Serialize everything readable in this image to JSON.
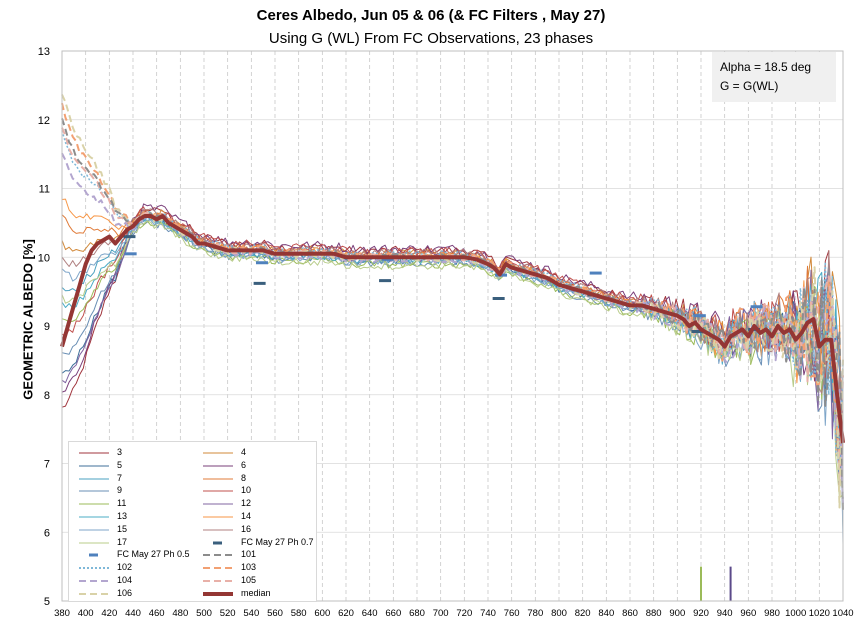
{
  "chart_data": {
    "type": "line",
    "title": "Ceres Albedo, Jun 05 & 06 (& FC Filters , May 27)",
    "subtitle": "Using G (WL) From FC Observations, 23 phases",
    "ylabel": "GEOMETRIC ALBEDO [%]",
    "xlim": [
      380,
      1040
    ],
    "ylim": [
      5,
      13
    ],
    "x_ticks": [
      380,
      400,
      420,
      440,
      460,
      480,
      500,
      520,
      540,
      560,
      580,
      600,
      620,
      640,
      660,
      680,
      700,
      720,
      740,
      760,
      780,
      800,
      820,
      840,
      860,
      880,
      900,
      920,
      940,
      960,
      980,
      1000,
      1020,
      1040
    ],
    "y_ticks": [
      5,
      6,
      7,
      8,
      9,
      10,
      11,
      12,
      13
    ],
    "grid": {
      "vertical": "dashed",
      "horizontal": "solid"
    },
    "legend_position": "bottom-left",
    "annotation": {
      "line1": "Alpha = 18.5  deg",
      "line2": "G = G(WL)"
    },
    "series": [
      {
        "name": "3",
        "color": "#a0343c",
        "style": "solid",
        "width": 1,
        "offset": 0.1,
        "lowstart": 7.8,
        "noise": 0.06
      },
      {
        "name": "4",
        "color": "#d2893a",
        "style": "solid",
        "width": 1,
        "offset": 0.05,
        "lowstart": 10.2,
        "noise": 0.06
      },
      {
        "name": "5",
        "color": "#3f6f9a",
        "style": "solid",
        "width": 1,
        "offset": -0.05,
        "lowstart": 8.3,
        "noise": 0.06
      },
      {
        "name": "6",
        "color": "#7a3f7a",
        "style": "solid",
        "width": 1,
        "offset": 0.12,
        "lowstart": 8.0,
        "noise": 0.07
      },
      {
        "name": "7",
        "color": "#4aa0c0",
        "style": "solid",
        "width": 1,
        "offset": -0.02,
        "lowstart": 9.6,
        "noise": 0.06
      },
      {
        "name": "8",
        "color": "#e07b39",
        "style": "solid",
        "width": 1,
        "offset": 0.03,
        "lowstart": 10.6,
        "noise": 0.06
      },
      {
        "name": "9",
        "color": "#6a8fb5",
        "style": "solid",
        "width": 1,
        "offset": -0.08,
        "lowstart": 8.6,
        "noise": 0.06
      },
      {
        "name": "10",
        "color": "#c0504d",
        "style": "solid",
        "width": 1,
        "offset": 0.08,
        "lowstart": 8.9,
        "noise": 0.07
      },
      {
        "name": "11",
        "color": "#9bbb59",
        "style": "solid",
        "width": 1,
        "offset": -0.1,
        "lowstart": 9.1,
        "noise": 0.06
      },
      {
        "name": "12",
        "color": "#8064a2",
        "style": "solid",
        "width": 1,
        "offset": 0.0,
        "lowstart": 8.2,
        "noise": 0.06
      },
      {
        "name": "13",
        "color": "#4bacc6",
        "style": "solid",
        "width": 1,
        "offset": -0.04,
        "lowstart": 9.3,
        "noise": 0.06
      },
      {
        "name": "14",
        "color": "#f79646",
        "style": "solid",
        "width": 1,
        "offset": 0.02,
        "lowstart": 10.9,
        "noise": 0.06
      },
      {
        "name": "15",
        "color": "#7fa6c9",
        "style": "solid",
        "width": 1,
        "offset": -0.06,
        "lowstart": 9.8,
        "noise": 0.06
      },
      {
        "name": "16",
        "color": "#b08080",
        "style": "solid",
        "width": 1,
        "offset": 0.06,
        "lowstart": 10.0,
        "noise": 0.06
      },
      {
        "name": "17",
        "color": "#b8cc8a",
        "style": "solid",
        "width": 1,
        "offset": -0.12,
        "lowstart": 9.4,
        "noise": 0.06
      },
      {
        "name": "102",
        "color": "#7fb8d8",
        "style": "dotted",
        "width": 1.5,
        "offset": 0.04,
        "lowstart": 11.8,
        "noise": 0.05
      },
      {
        "name": "103",
        "color": "#f2a072",
        "style": "dashed",
        "width": 2,
        "offset": 0.02,
        "lowstart": 12.2,
        "noise": 0.05
      },
      {
        "name": "104",
        "color": "#b3a6cf",
        "style": "dashed",
        "width": 2,
        "offset": -0.03,
        "lowstart": 11.5,
        "noise": 0.05
      },
      {
        "name": "105",
        "color": "#e8b0a8",
        "style": "dashed",
        "width": 2,
        "offset": 0.0,
        "lowstart": 11.9,
        "noise": 0.05
      },
      {
        "name": "106",
        "color": "#d9d2a8",
        "style": "dashed",
        "width": 2,
        "offset": -0.01,
        "lowstart": 12.4,
        "noise": 0.05
      },
      {
        "name": "101",
        "color": "#8c8c8c",
        "style": "dashed",
        "width": 2,
        "offset": 0.01,
        "lowstart": 12.0,
        "noise": 0.04
      }
    ],
    "median": {
      "name": "median",
      "color": "#943634",
      "x": [
        380,
        385,
        390,
        395,
        400,
        405,
        410,
        415,
        420,
        425,
        430,
        435,
        440,
        445,
        450,
        455,
        460,
        465,
        470,
        475,
        480,
        485,
        490,
        495,
        500,
        510,
        520,
        530,
        540,
        550,
        560,
        570,
        580,
        590,
        600,
        610,
        620,
        630,
        640,
        650,
        660,
        670,
        680,
        690,
        700,
        710,
        720,
        730,
        740,
        745,
        750,
        755,
        760,
        770,
        780,
        790,
        800,
        810,
        820,
        830,
        840,
        850,
        860,
        870,
        880,
        890,
        900,
        905,
        910,
        915,
        920,
        925,
        930,
        935,
        940,
        945,
        950,
        955,
        960,
        965,
        970,
        975,
        980,
        985,
        990,
        995,
        1000,
        1005,
        1010,
        1015,
        1020,
        1025,
        1030,
        1035,
        1040
      ],
      "y": [
        8.7,
        9.0,
        9.3,
        9.6,
        9.9,
        10.1,
        10.2,
        10.25,
        10.3,
        10.2,
        10.3,
        10.4,
        10.45,
        10.55,
        10.6,
        10.6,
        10.55,
        10.6,
        10.5,
        10.45,
        10.4,
        10.35,
        10.3,
        10.2,
        10.2,
        10.15,
        10.1,
        10.1,
        10.1,
        10.1,
        10.05,
        10.05,
        10.05,
        10.05,
        10.05,
        10.05,
        10.0,
        10.0,
        10.0,
        10.0,
        10.0,
        10.0,
        10.0,
        10.0,
        10.0,
        10.0,
        10.0,
        9.97,
        9.9,
        9.85,
        9.75,
        9.9,
        9.85,
        9.8,
        9.75,
        9.7,
        9.6,
        9.55,
        9.5,
        9.45,
        9.4,
        9.35,
        9.3,
        9.3,
        9.25,
        9.2,
        9.15,
        9.1,
        9.0,
        9.05,
        8.95,
        8.9,
        8.85,
        8.8,
        8.7,
        8.85,
        8.9,
        8.95,
        8.85,
        9.0,
        8.9,
        8.95,
        8.85,
        9.0,
        8.9,
        8.95,
        8.8,
        8.9,
        9.05,
        9.1,
        8.7,
        8.8,
        8.8,
        8.0,
        7.3
      ]
    },
    "fc_filters": [
      {
        "name": "FC May 27 Ph 0.7",
        "color": "#3a5f7d",
        "points": [
          {
            "x": 437,
            "y": 10.3
          },
          {
            "x": 547,
            "y": 9.62
          },
          {
            "x": 653,
            "y": 9.66
          },
          {
            "x": 749,
            "y": 9.4
          },
          {
            "x": 829,
            "y": 9.45
          },
          {
            "x": 917,
            "y": 8.92
          },
          {
            "x": 965,
            "y": 8.95
          }
        ]
      },
      {
        "name": "FC May 27 Ph 0.5",
        "color": "#4f81bd",
        "points": [
          {
            "x": 438,
            "y": 10.05
          },
          {
            "x": 549,
            "y": 9.92
          },
          {
            "x": 655,
            "y": 9.97
          },
          {
            "x": 751,
            "y": 9.74
          },
          {
            "x": 831,
            "y": 9.77
          },
          {
            "x": 919,
            "y": 9.15
          },
          {
            "x": 967,
            "y": 9.28
          }
        ]
      }
    ],
    "markers": [
      {
        "x": 920,
        "y_top": 5.5,
        "color": "#9bbb59"
      },
      {
        "x": 945,
        "y_top": 5.5,
        "color": "#5b4a8a"
      }
    ],
    "legend": [
      {
        "name": "3",
        "color": "#a0343c",
        "style": "solid"
      },
      {
        "name": "4",
        "color": "#d2893a",
        "style": "solid"
      },
      {
        "name": "5",
        "color": "#3f6f9a",
        "style": "solid"
      },
      {
        "name": "6",
        "color": "#7a3f7a",
        "style": "solid"
      },
      {
        "name": "7",
        "color": "#4aa0c0",
        "style": "solid"
      },
      {
        "name": "8",
        "color": "#e07b39",
        "style": "solid"
      },
      {
        "name": "9",
        "color": "#6a8fb5",
        "style": "solid"
      },
      {
        "name": "10",
        "color": "#c0504d",
        "style": "solid"
      },
      {
        "name": "11",
        "color": "#9bbb59",
        "style": "solid"
      },
      {
        "name": "12",
        "color": "#8064a2",
        "style": "solid"
      },
      {
        "name": "13",
        "color": "#4bacc6",
        "style": "solid"
      },
      {
        "name": "14",
        "color": "#f79646",
        "style": "solid"
      },
      {
        "name": "15",
        "color": "#7fa6c9",
        "style": "solid"
      },
      {
        "name": "16",
        "color": "#b08080",
        "style": "solid"
      },
      {
        "name": "17",
        "color": "#b8cc8a",
        "style": "solid"
      },
      {
        "name": "FC May 27 Ph 0.7",
        "color": "#3a5f7d",
        "style": "mark"
      },
      {
        "name": "FC May 27 Ph 0.5",
        "color": "#4f81bd",
        "style": "mark"
      },
      {
        "name": "101",
        "color": "#8c8c8c",
        "style": "dashed"
      },
      {
        "name": "102",
        "color": "#7fb8d8",
        "style": "dotted"
      },
      {
        "name": "103",
        "color": "#f2a072",
        "style": "dashed"
      },
      {
        "name": "104",
        "color": "#b3a6cf",
        "style": "dashed"
      },
      {
        "name": "105",
        "color": "#e8b0a8",
        "style": "dashed"
      },
      {
        "name": "106",
        "color": "#d9d2a8",
        "style": "dashed"
      },
      {
        "name": "median",
        "color": "#943634",
        "style": "thick"
      }
    ]
  }
}
